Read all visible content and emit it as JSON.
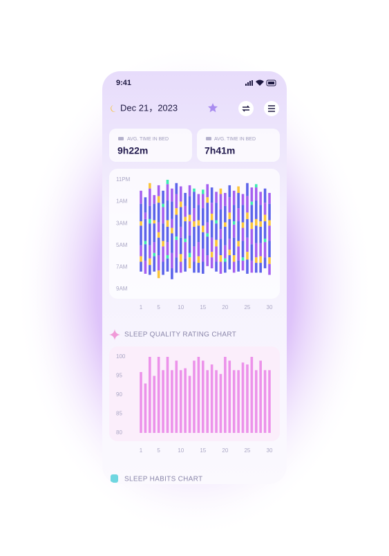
{
  "status_bar": {
    "time": "9:41"
  },
  "header": {
    "date": "Dec 21，2023"
  },
  "stats": [
    {
      "label": "AVG. TIME IN BED",
      "value": "9h22m"
    },
    {
      "label": "AVG. TIME IN BED",
      "value": "7h41m"
    }
  ],
  "chart_data": [
    {
      "type": "sleep-stages",
      "x": [
        1,
        2,
        3,
        4,
        5,
        6,
        7,
        8,
        9,
        10,
        11,
        12,
        13,
        14,
        15,
        16,
        17,
        18,
        19,
        20,
        21,
        22,
        23,
        24,
        25,
        26,
        27,
        28,
        29,
        30
      ],
      "xlim": [
        1,
        30
      ],
      "xticks": [
        1,
        5,
        10,
        15,
        20,
        25,
        30
      ],
      "ylim": [
        0,
        10
      ],
      "y_reversed": true,
      "yticks": [
        {
          "value": 0,
          "label": "11PM"
        },
        {
          "value": 2,
          "label": "1AM"
        },
        {
          "value": 4,
          "label": "3AM"
        },
        {
          "value": 6,
          "label": "5AM"
        },
        {
          "value": 8,
          "label": "7AM"
        },
        {
          "value": 10,
          "label": "9AM"
        }
      ],
      "stage_colors": [
        "#a45ff0",
        "#5c63ea",
        "#fbc53a",
        "#3debb3"
      ],
      "columns": [
        {
          "start": 1.0,
          "segments": [
            [
              0,
              1.2
            ],
            [
              1,
              1.6
            ],
            [
              2,
              0.4
            ],
            [
              1,
              1.8
            ],
            [
              0,
              1.0
            ],
            [
              2,
              0.5
            ],
            [
              1,
              0.9
            ]
          ]
        },
        {
          "start": 1.6,
          "segments": [
            [
              1,
              1.4
            ],
            [
              0,
              0.6
            ],
            [
              1,
              2.0
            ],
            [
              3,
              0.3
            ],
            [
              1,
              1.5
            ],
            [
              0,
              1.2
            ]
          ]
        },
        {
          "start": 0.3,
          "segments": [
            [
              2,
              0.5
            ],
            [
              0,
              1.6
            ],
            [
              1,
              1.2
            ],
            [
              3,
              0.4
            ],
            [
              1,
              2.0
            ],
            [
              0,
              1.2
            ],
            [
              2,
              0.6
            ],
            [
              1,
              0.9
            ]
          ]
        },
        {
          "start": 1.4,
          "segments": [
            [
              0,
              0.8
            ],
            [
              1,
              1.5
            ],
            [
              2,
              0.3
            ],
            [
              1,
              1.7
            ],
            [
              0,
              1.0
            ],
            [
              3,
              0.3
            ],
            [
              1,
              1.4
            ]
          ]
        },
        {
          "start": 0.5,
          "segments": [
            [
              0,
              1.0
            ],
            [
              2,
              0.6
            ],
            [
              1,
              1.8
            ],
            [
              0,
              0.9
            ],
            [
              2,
              0.5
            ],
            [
              1,
              1.6
            ],
            [
              0,
              1.4
            ],
            [
              2,
              0.7
            ]
          ]
        },
        {
          "start": 1.0,
          "segments": [
            [
              1,
              1.2
            ],
            [
              3,
              0.3
            ],
            [
              0,
              1.5
            ],
            [
              1,
              1.6
            ],
            [
              2,
              0.5
            ],
            [
              0,
              1.4
            ],
            [
              1,
              1.2
            ]
          ]
        },
        {
          "start": 0.0,
          "segments": [
            [
              3,
              0.4
            ],
            [
              0,
              1.5
            ],
            [
              1,
              1.8
            ],
            [
              2,
              0.6
            ],
            [
              1,
              1.4
            ],
            [
              0,
              1.2
            ],
            [
              3,
              0.3
            ],
            [
              1,
              1.2
            ]
          ]
        },
        {
          "start": 0.8,
          "segments": [
            [
              0,
              1.2
            ],
            [
              1,
              1.6
            ],
            [
              0,
              0.8
            ],
            [
              2,
              0.5
            ],
            [
              1,
              1.8
            ],
            [
              0,
              1.4
            ],
            [
              1,
              1.0
            ]
          ]
        },
        {
          "start": 0.3,
          "segments": [
            [
              1,
              1.0
            ],
            [
              0,
              1.3
            ],
            [
              2,
              0.6
            ],
            [
              1,
              2.0
            ],
            [
              3,
              0.3
            ],
            [
              0,
              1.6
            ],
            [
              1,
              1.4
            ]
          ]
        },
        {
          "start": 0.6,
          "segments": [
            [
              0,
              1.4
            ],
            [
              2,
              0.5
            ],
            [
              1,
              1.8
            ],
            [
              0,
              1.0
            ],
            [
              1,
              1.5
            ],
            [
              2,
              0.7
            ],
            [
              0,
              1.0
            ]
          ]
        },
        {
          "start": 1.2,
          "segments": [
            [
              1,
              1.2
            ],
            [
              0,
              1.0
            ],
            [
              2,
              0.4
            ],
            [
              1,
              1.6
            ],
            [
              3,
              0.3
            ],
            [
              0,
              1.5
            ],
            [
              1,
              1.2
            ]
          ]
        },
        {
          "start": 0.5,
          "segments": [
            [
              0,
              1.0
            ],
            [
              1,
              1.7
            ],
            [
              2,
              0.6
            ],
            [
              0,
              1.3
            ],
            [
              1,
              1.6
            ],
            [
              3,
              0.4
            ],
            [
              2,
              1.0
            ]
          ]
        },
        {
          "start": 0.8,
          "segments": [
            [
              3,
              0.3
            ],
            [
              1,
              1.5
            ],
            [
              0,
              1.2
            ],
            [
              2,
              0.5
            ],
            [
              1,
              1.8
            ],
            [
              0,
              1.4
            ],
            [
              1,
              1.0
            ]
          ]
        },
        {
          "start": 1.3,
          "segments": [
            [
              0,
              1.0
            ],
            [
              1,
              1.4
            ],
            [
              2,
              0.5
            ],
            [
              1,
              1.5
            ],
            [
              0,
              1.3
            ],
            [
              2,
              0.6
            ],
            [
              1,
              0.9
            ]
          ]
        },
        {
          "start": 0.9,
          "segments": [
            [
              3,
              0.4
            ],
            [
              0,
              1.3
            ],
            [
              1,
              1.6
            ],
            [
              2,
              0.6
            ],
            [
              1,
              1.5
            ],
            [
              0,
              1.2
            ],
            [
              1,
              1.1
            ]
          ]
        },
        {
          "start": 0.4,
          "segments": [
            [
              0,
              1.2
            ],
            [
              2,
              0.5
            ],
            [
              1,
              1.8
            ],
            [
              0,
              1.0
            ],
            [
              3,
              0.3
            ],
            [
              1,
              1.7
            ],
            [
              0,
              1.0
            ]
          ]
        },
        {
          "start": 0.7,
          "segments": [
            [
              1,
              1.4
            ],
            [
              0,
              1.0
            ],
            [
              2,
              0.6
            ],
            [
              1,
              1.6
            ],
            [
              0,
              1.3
            ],
            [
              2,
              0.5
            ],
            [
              0,
              1.0
            ]
          ]
        },
        {
          "start": 1.1,
          "segments": [
            [
              0,
              1.0
            ],
            [
              1,
              1.6
            ],
            [
              3,
              0.3
            ],
            [
              1,
              1.5
            ],
            [
              2,
              0.6
            ],
            [
              0,
              1.4
            ],
            [
              1,
              0.9
            ]
          ]
        },
        {
          "start": 0.8,
          "segments": [
            [
              2,
              0.5
            ],
            [
              0,
              1.4
            ],
            [
              1,
              1.8
            ],
            [
              0,
              0.9
            ],
            [
              1,
              1.5
            ],
            [
              2,
              0.6
            ],
            [
              0,
              1.1
            ]
          ]
        },
        {
          "start": 1.2,
          "segments": [
            [
              0,
              1.2
            ],
            [
              1,
              1.5
            ],
            [
              2,
              0.4
            ],
            [
              1,
              1.7
            ],
            [
              0,
              1.2
            ],
            [
              3,
              0.3
            ],
            [
              1,
              1.0
            ]
          ]
        },
        {
          "start": 0.5,
          "segments": [
            [
              1,
              1.1
            ],
            [
              0,
              1.4
            ],
            [
              2,
              0.6
            ],
            [
              1,
              1.8
            ],
            [
              0,
              1.0
            ],
            [
              2,
              0.5
            ],
            [
              1,
              1.3
            ]
          ]
        },
        {
          "start": 1.0,
          "segments": [
            [
              0,
              1.3
            ],
            [
              1,
              1.5
            ],
            [
              3,
              0.3
            ],
            [
              0,
              1.2
            ],
            [
              1,
              1.6
            ],
            [
              2,
              0.6
            ],
            [
              0,
              1.0
            ]
          ]
        },
        {
          "start": 0.6,
          "segments": [
            [
              2,
              0.6
            ],
            [
              1,
              1.4
            ],
            [
              0,
              1.2
            ],
            [
              1,
              1.8
            ],
            [
              2,
              0.5
            ],
            [
              0,
              1.3
            ],
            [
              1,
              1.0
            ]
          ]
        },
        {
          "start": 1.3,
          "segments": [
            [
              0,
              1.0
            ],
            [
              1,
              1.6
            ],
            [
              2,
              0.5
            ],
            [
              0,
              1.2
            ],
            [
              1,
              1.5
            ],
            [
              3,
              0.3
            ],
            [
              0,
              0.9
            ]
          ]
        },
        {
          "start": 0.3,
          "segments": [
            [
              1,
              1.2
            ],
            [
              0,
              1.5
            ],
            [
              2,
              0.6
            ],
            [
              1,
              1.7
            ],
            [
              0,
              1.3
            ],
            [
              2,
              0.7
            ],
            [
              1,
              1.3
            ]
          ]
        },
        {
          "start": 0.7,
          "segments": [
            [
              0,
              1.3
            ],
            [
              3,
              0.3
            ],
            [
              1,
              1.6
            ],
            [
              2,
              0.6
            ],
            [
              0,
              1.4
            ],
            [
              1,
              1.5
            ],
            [
              0,
              1.1
            ]
          ]
        },
        {
          "start": 0.4,
          "segments": [
            [
              3,
              0.3
            ],
            [
              0,
              1.2
            ],
            [
              1,
              1.7
            ],
            [
              2,
              0.6
            ],
            [
              1,
              1.6
            ],
            [
              0,
              1.3
            ],
            [
              2,
              0.5
            ],
            [
              1,
              0.9
            ]
          ]
        },
        {
          "start": 1.1,
          "segments": [
            [
              0,
              1.2
            ],
            [
              1,
              1.5
            ],
            [
              2,
              0.5
            ],
            [
              1,
              1.5
            ],
            [
              0,
              1.2
            ],
            [
              2,
              0.6
            ],
            [
              1,
              0.9
            ]
          ]
        },
        {
          "start": 0.8,
          "segments": [
            [
              1,
              1.3
            ],
            [
              0,
              1.1
            ],
            [
              2,
              0.6
            ],
            [
              1,
              1.6
            ],
            [
              3,
              0.3
            ],
            [
              0,
              1.4
            ],
            [
              1,
              1.0
            ]
          ]
        },
        {
          "start": 1.2,
          "segments": [
            [
              0,
              1.0
            ],
            [
              1,
              1.5
            ],
            [
              2,
              0.5
            ],
            [
              0,
              1.4
            ],
            [
              1,
              1.5
            ],
            [
              2,
              0.6
            ],
            [
              0,
              1.0
            ]
          ]
        }
      ]
    },
    {
      "type": "bar",
      "title": "SLEEP QUALITY RATING CHART",
      "x": [
        1,
        2,
        3,
        4,
        5,
        6,
        7,
        8,
        9,
        10,
        11,
        12,
        13,
        14,
        15,
        16,
        17,
        18,
        19,
        20,
        21,
        22,
        23,
        24,
        25,
        26,
        27,
        28,
        29,
        30
      ],
      "values": [
        96,
        93,
        100,
        95,
        100,
        96.5,
        100,
        96.5,
        99,
        96.5,
        97,
        95,
        99,
        100,
        99,
        96.5,
        98,
        96.5,
        95.5,
        100,
        99,
        96.5,
        96.5,
        98.5,
        98,
        100,
        96.5,
        99,
        96.5,
        96.5
      ],
      "color": "#ec92ea",
      "xlim": [
        1,
        30
      ],
      "xticks": [
        1,
        5,
        10,
        15,
        20,
        25,
        30
      ],
      "ylim": [
        80,
        100
      ],
      "yticks": [
        80,
        85,
        90,
        95,
        100
      ]
    }
  ],
  "habits": {
    "title": "SLEEP HABITS CHART"
  }
}
